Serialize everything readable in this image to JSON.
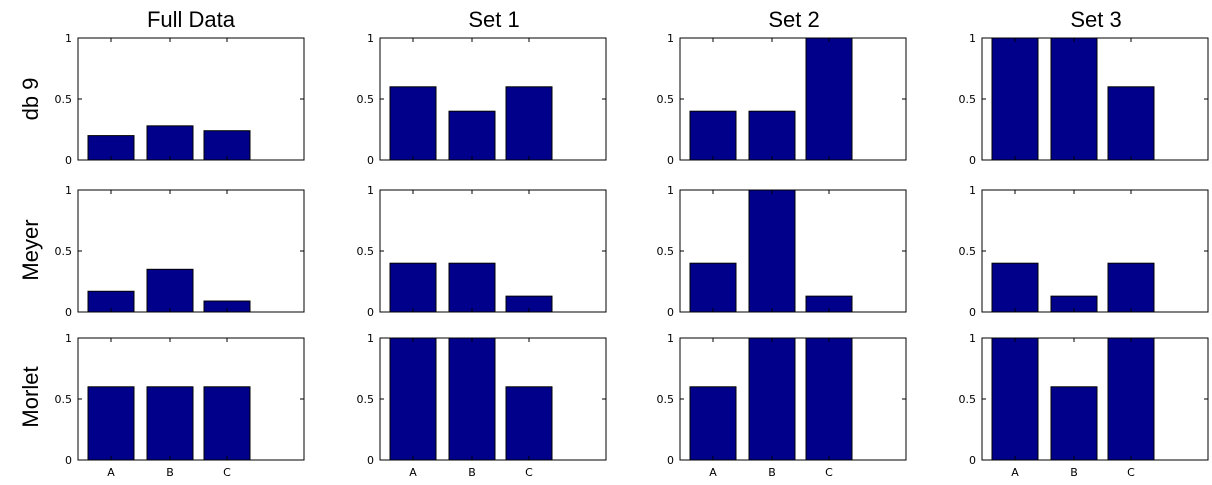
{
  "colors": {
    "bar": "#00008b",
    "axes": "#000000",
    "background": "#ffffff"
  },
  "chart_data": [
    {
      "type": "bar",
      "row": "db 9",
      "column": "Full Data",
      "categories": [
        "A",
        "B",
        "C"
      ],
      "values": [
        0.2,
        0.28,
        0.24
      ],
      "yticks": [
        "0",
        "0.5",
        "1"
      ],
      "ylim": [
        0,
        1
      ]
    },
    {
      "type": "bar",
      "row": "db 9",
      "column": "Set 1",
      "categories": [
        "A",
        "B",
        "C"
      ],
      "values": [
        0.6,
        0.4,
        0.6
      ],
      "yticks": [
        "0",
        "0.5",
        "1"
      ],
      "ylim": [
        0,
        1
      ]
    },
    {
      "type": "bar",
      "row": "db 9",
      "column": "Set 2",
      "categories": [
        "A",
        "B",
        "C"
      ],
      "values": [
        0.4,
        0.4,
        1.0
      ],
      "yticks": [
        "0",
        "0.5",
        "1"
      ],
      "ylim": [
        0,
        1
      ]
    },
    {
      "type": "bar",
      "row": "db 9",
      "column": "Set 3",
      "categories": [
        "A",
        "B",
        "C"
      ],
      "values": [
        1.0,
        1.0,
        0.6
      ],
      "yticks": [
        "0",
        "0.5",
        "1"
      ],
      "ylim": [
        0,
        1
      ]
    },
    {
      "type": "bar",
      "row": "Meyer",
      "column": "Full Data",
      "categories": [
        "A",
        "B",
        "C"
      ],
      "values": [
        0.17,
        0.35,
        0.09
      ],
      "yticks": [
        "0",
        "0.5",
        "1"
      ],
      "ylim": [
        0,
        1
      ]
    },
    {
      "type": "bar",
      "row": "Meyer",
      "column": "Set 1",
      "categories": [
        "A",
        "B",
        "C"
      ],
      "values": [
        0.4,
        0.4,
        0.13
      ],
      "yticks": [
        "0",
        "0.5",
        "1"
      ],
      "ylim": [
        0,
        1
      ]
    },
    {
      "type": "bar",
      "row": "Meyer",
      "column": "Set 2",
      "categories": [
        "A",
        "B",
        "C"
      ],
      "values": [
        0.4,
        1.0,
        0.13
      ],
      "yticks": [
        "0",
        "0.5",
        "1"
      ],
      "ylim": [
        0,
        1
      ]
    },
    {
      "type": "bar",
      "row": "Meyer",
      "column": "Set 3",
      "categories": [
        "A",
        "B",
        "C"
      ],
      "values": [
        0.4,
        0.13,
        0.4
      ],
      "yticks": [
        "0",
        "0.5",
        "1"
      ],
      "ylim": [
        0,
        1
      ]
    },
    {
      "type": "bar",
      "row": "Morlet",
      "column": "Full Data",
      "categories": [
        "A",
        "B",
        "C"
      ],
      "values": [
        0.6,
        0.6,
        0.6
      ],
      "yticks": [
        "0",
        "0.5",
        "1"
      ],
      "ylim": [
        0,
        1
      ]
    },
    {
      "type": "bar",
      "row": "Morlet",
      "column": "Set 1",
      "categories": [
        "A",
        "B",
        "C"
      ],
      "values": [
        1.0,
        1.0,
        0.6
      ],
      "yticks": [
        "0",
        "0.5",
        "1"
      ],
      "ylim": [
        0,
        1
      ]
    },
    {
      "type": "bar",
      "row": "Morlet",
      "column": "Set 2",
      "categories": [
        "A",
        "B",
        "C"
      ],
      "values": [
        0.6,
        1.0,
        1.0
      ],
      "yticks": [
        "0",
        "0.5",
        "1"
      ],
      "ylim": [
        0,
        1
      ]
    },
    {
      "type": "bar",
      "row": "Morlet",
      "column": "Set 3",
      "categories": [
        "A",
        "B",
        "C"
      ],
      "values": [
        1.0,
        0.6,
        1.0
      ],
      "yticks": [
        "0",
        "0.5",
        "1"
      ],
      "ylim": [
        0,
        1
      ]
    }
  ],
  "column_titles": [
    "Full Data",
    "Set 1",
    "Set 2",
    "Set 3"
  ],
  "row_titles": [
    "db 9",
    "Meyer",
    "Morlet"
  ]
}
